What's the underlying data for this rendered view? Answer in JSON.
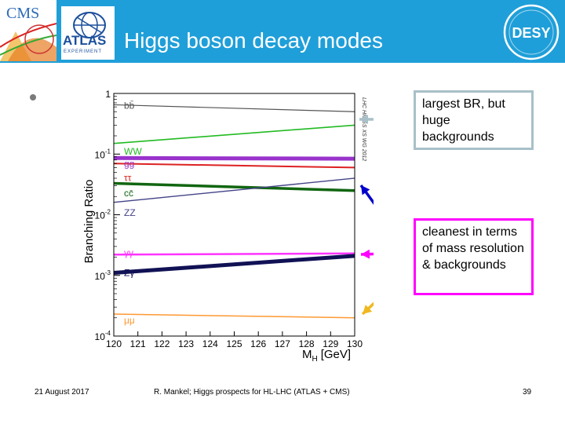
{
  "header": {
    "title": "Higgs boson decay modes"
  },
  "logos": {
    "cms": "CMS",
    "atlas": "ATLAS",
    "atlas_sub": "EXPERIMENT",
    "desy": "DESY"
  },
  "colors": {
    "header_bg": "#1f9fd9",
    "callout_1_border": "#a8c0c8",
    "callout_2_border": "#ff00ff"
  },
  "callouts": [
    {
      "text": "largest BR, but huge backgrounds"
    },
    {
      "text": "cleanest in terms of mass resolution & backgrounds"
    }
  ],
  "footer": {
    "date": "21 August 2017",
    "center": "R. Mankel; Higgs prospects for HL-LHC (ATLAS + CMS)",
    "page": "39"
  },
  "chart_data": {
    "type": "line",
    "ylabel": "Branching Ratio",
    "xlabel": "M_H [GeV]",
    "xlabel_main": "M",
    "xlabel_sub": "H",
    "xlabel_unit": "[GeV]",
    "side_label": "LHC HIGGS XS WG 2012",
    "xlim": [
      120,
      130
    ],
    "ylim": [
      0.0001,
      1
    ],
    "yscale": "log",
    "x_ticks": [
      "120",
      "121",
      "122",
      "123",
      "124",
      "125",
      "126",
      "127",
      "128",
      "129",
      "130"
    ],
    "y_ticks": [
      {
        "value": 1,
        "base": "1",
        "exp": ""
      },
      {
        "value": 0.1,
        "base": "10",
        "exp": "-1"
      },
      {
        "value": 0.01,
        "base": "10",
        "exp": "-2"
      },
      {
        "value": 0.001,
        "base": "10",
        "exp": "-3"
      },
      {
        "value": 0.0001,
        "base": "10",
        "exp": "-4"
      }
    ],
    "x": [
      120,
      130
    ],
    "series": [
      {
        "name": "bb̄",
        "values": [
          0.65,
          0.5
        ],
        "color": "#555555",
        "label_y": 0.56
      },
      {
        "name": "WW",
        "values": [
          0.15,
          0.3
        ],
        "color": "#22bb22",
        "label_y": 0.098
      },
      {
        "name": "gg",
        "values": [
          0.086,
          0.084
        ],
        "color": "#9933cc",
        "label_y": 0.062
      },
      {
        "name": "ττ",
        "values": [
          0.07,
          0.06
        ],
        "color": "#dd2222",
        "label_y": 0.036
      },
      {
        "name": "cc̄",
        "values": [
          0.033,
          0.025
        ],
        "color": "#116611",
        "label_y": 0.02
      },
      {
        "name": "ZZ",
        "values": [
          0.016,
          0.04
        ],
        "color": "#444488",
        "label_y": 0.0095
      },
      {
        "name": "γγ",
        "values": [
          0.0022,
          0.0023
        ],
        "color": "#ff33ff",
        "label_y": 0.0021
      },
      {
        "name": "Zγ",
        "values": [
          0.0011,
          0.0021
        ],
        "color": "#111155",
        "label_y": 0.00098
      },
      {
        "name": "μμ",
        "values": [
          0.00023,
          0.0002
        ],
        "color": "#ff9933",
        "label_y": 0.00016
      }
    ]
  },
  "arrows": [
    {
      "color": "#a8c0c8"
    },
    {
      "color": "#0000cc"
    },
    {
      "color": "#ff00ff"
    },
    {
      "color": "#f0b820"
    }
  ]
}
